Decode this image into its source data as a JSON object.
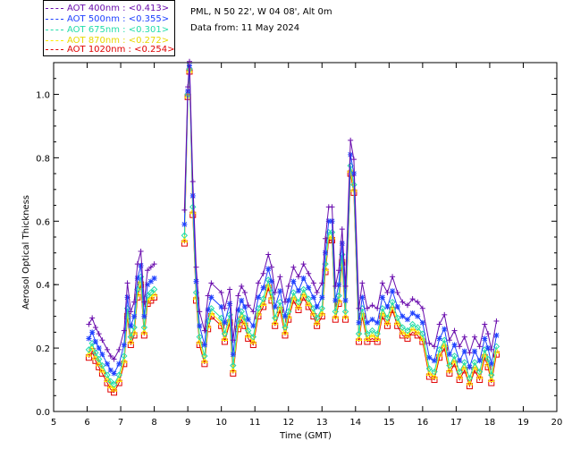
{
  "info": {
    "line1": "PML, N 50 22', W 04 08', Alt 0m",
    "line2": "Data from: 11 May 2024"
  },
  "chart_data": {
    "type": "line",
    "title": "",
    "xlabel": "Time (GMT)",
    "ylabel": "Aerosol Optical Thickness",
    "xlim": [
      5,
      20
    ],
    "ylim": [
      0,
      1.1
    ],
    "xticks": [
      5,
      6,
      7,
      8,
      9,
      10,
      11,
      12,
      13,
      14,
      15,
      16,
      17,
      18,
      19,
      20
    ],
    "yticks": [
      0.0,
      0.2,
      0.4,
      0.6,
      0.8,
      1.0
    ],
    "ytick_labels": [
      "0.0",
      "0.2",
      "0.4",
      "0.6",
      "0.8",
      "1.0"
    ],
    "legend_position": "top-left",
    "series": [
      {
        "name": "AOT 400nm",
        "label": "AOT  400nm : <0.413>",
        "color": "#6a0dad",
        "marker": "plus",
        "offset": 0.045
      },
      {
        "name": "AOT 500nm",
        "label": "AOT  500nm : <0.355>",
        "color": "#1e40ff",
        "marker": "star",
        "offset": 0.0
      },
      {
        "name": "AOT 675nm",
        "label": "AOT  675nm : <0.301>",
        "color": "#22ddaa",
        "marker": "diamond",
        "offset": -0.035
      },
      {
        "name": "AOT 870nm",
        "label": "AOT  870nm : <0.272>",
        "color": "#ffee00",
        "marker": "triangle",
        "offset": -0.05
      },
      {
        "name": "AOT 1020nm",
        "label": "AOT 1020nm : <0.254>",
        "color": "#e00000",
        "marker": "square",
        "offset": -0.06
      }
    ],
    "base_x": [
      6.05,
      6.15,
      6.25,
      6.35,
      6.45,
      6.6,
      6.7,
      6.8,
      6.95,
      7.1,
      7.2,
      7.3,
      7.4,
      7.5,
      7.6,
      7.7,
      7.8,
      7.9,
      8.0,
      8.8,
      8.9,
      9.0,
      9.05,
      9.15,
      9.25,
      9.35,
      9.5,
      9.6,
      9.7,
      10.0,
      10.1,
      10.25,
      10.35,
      10.5,
      10.6,
      10.7,
      10.8,
      10.95,
      11.1,
      11.25,
      11.4,
      11.5,
      11.6,
      11.75,
      11.9,
      12.0,
      12.15,
      12.3,
      12.45,
      12.6,
      12.75,
      12.85,
      13.0,
      13.1,
      13.2,
      13.3,
      13.4,
      13.5,
      13.6,
      13.7,
      13.85,
      13.95,
      14.1,
      14.2,
      14.35,
      14.5,
      14.65,
      14.8,
      14.95,
      15.1,
      15.25,
      15.4,
      15.55,
      15.7,
      15.85,
      16.0,
      16.2,
      16.35,
      16.5,
      16.65,
      16.8,
      16.95,
      17.1,
      17.25,
      17.4,
      17.55,
      17.7,
      17.85,
      17.95,
      18.05,
      18.2
    ],
    "base_y": [
      0.23,
      0.25,
      0.22,
      0.2,
      0.18,
      0.15,
      0.13,
      0.12,
      0.15,
      0.21,
      0.36,
      0.27,
      0.3,
      0.42,
      0.46,
      0.3,
      0.4,
      0.41,
      0.42,
      null,
      0.59,
      1.01,
      1.09,
      0.68,
      0.41,
      0.27,
      0.21,
      0.32,
      0.36,
      0.33,
      0.28,
      0.34,
      0.18,
      0.32,
      0.35,
      0.33,
      0.29,
      0.27,
      0.36,
      0.39,
      0.45,
      0.41,
      0.33,
      0.38,
      0.3,
      0.35,
      0.41,
      0.38,
      0.42,
      0.39,
      0.36,
      0.33,
      0.36,
      0.5,
      0.6,
      0.6,
      0.35,
      0.4,
      0.53,
      0.35,
      0.81,
      0.75,
      0.28,
      0.36,
      0.28,
      0.29,
      0.28,
      0.36,
      0.33,
      0.38,
      0.33,
      0.3,
      0.29,
      0.31,
      0.3,
      0.28,
      0.17,
      0.16,
      0.23,
      0.26,
      0.18,
      0.21,
      0.16,
      0.19,
      0.14,
      0.19,
      0.16,
      0.23,
      0.2,
      0.15,
      0.24
    ]
  }
}
